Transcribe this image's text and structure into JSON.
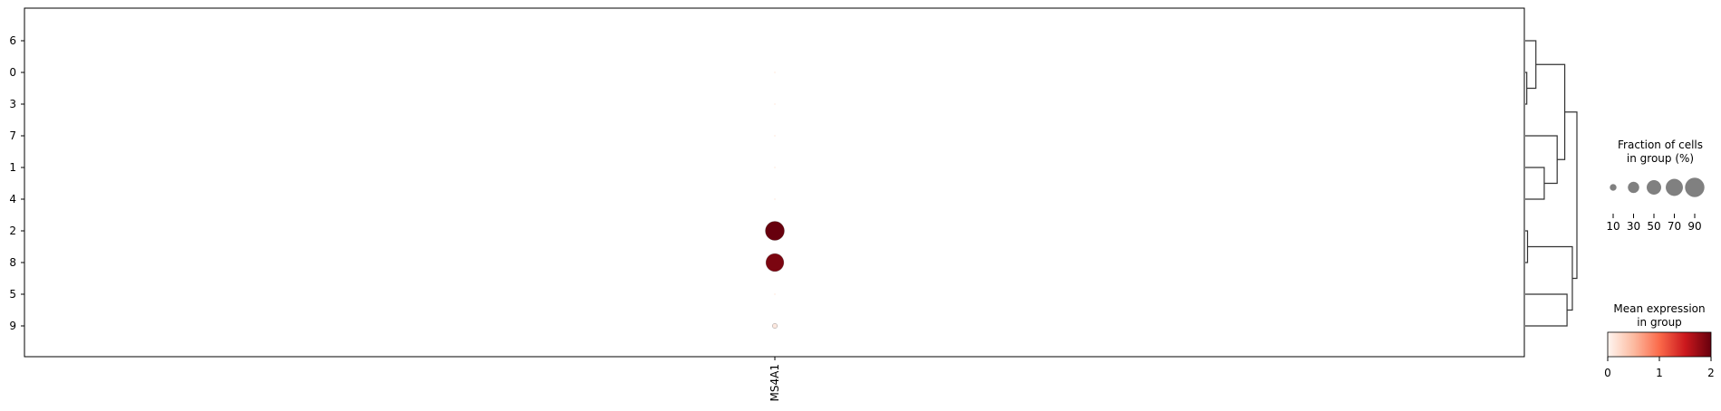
{
  "chart_data": {
    "type": "dotplot",
    "genes": [
      "MS4A1"
    ],
    "groups": [
      "6",
      "0",
      "3",
      "7",
      "1",
      "4",
      "2",
      "8",
      "5",
      "9"
    ],
    "points": [
      {
        "group": "6",
        "gene": "MS4A1",
        "fraction": 0,
        "mean_expression": 0
      },
      {
        "group": "0",
        "gene": "MS4A1",
        "fraction": 1,
        "mean_expression": 0.02
      },
      {
        "group": "3",
        "gene": "MS4A1",
        "fraction": 1,
        "mean_expression": 0.02
      },
      {
        "group": "7",
        "gene": "MS4A1",
        "fraction": 1,
        "mean_expression": 0.02
      },
      {
        "group": "1",
        "gene": "MS4A1",
        "fraction": 1,
        "mean_expression": 0.02
      },
      {
        "group": "4",
        "gene": "MS4A1",
        "fraction": 1,
        "mean_expression": 0.02
      },
      {
        "group": "2",
        "gene": "MS4A1",
        "fraction": 90,
        "mean_expression": 2.0
      },
      {
        "group": "8",
        "gene": "MS4A1",
        "fraction": 80,
        "mean_expression": 1.9
      },
      {
        "group": "5",
        "gene": "MS4A1",
        "fraction": 1,
        "mean_expression": 0.02
      },
      {
        "group": "9",
        "gene": "MS4A1",
        "fraction": 6,
        "mean_expression": 0.1
      }
    ],
    "dendrogram": {
      "leaf_order": [
        "6",
        "0",
        "3",
        "7",
        "1",
        "4",
        "2",
        "8",
        "5",
        "9"
      ],
      "links": [
        {
          "id": "a",
          "children": [
            "0",
            "3"
          ],
          "height": 0.02
        },
        {
          "id": "b",
          "children": [
            "6",
            "a"
          ],
          "height": 0.14
        },
        {
          "id": "c",
          "children": [
            "1",
            "4"
          ],
          "height": 0.25
        },
        {
          "id": "d",
          "children": [
            "7",
            "c"
          ],
          "height": 0.42
        },
        {
          "id": "e",
          "children": [
            "b",
            "d"
          ],
          "height": 0.52
        },
        {
          "id": "f",
          "children": [
            "2",
            "8"
          ],
          "height": 0.03
        },
        {
          "id": "g",
          "children": [
            "5",
            "9"
          ],
          "height": 0.55
        },
        {
          "id": "h",
          "children": [
            "f",
            "g"
          ],
          "height": 0.62
        },
        {
          "id": "root",
          "children": [
            "e",
            "h"
          ],
          "height": 0.68
        }
      ]
    },
    "size_legend": {
      "title_line1": "Fraction of cells",
      "title_line2": "in group (%)",
      "values": [
        10,
        30,
        50,
        70,
        90
      ],
      "labels": [
        "10",
        "30",
        "50",
        "70",
        "90"
      ],
      "color": "#808080"
    },
    "color_legend": {
      "title_line1": "Mean expression",
      "title_line2": "in group",
      "range": [
        0,
        2
      ],
      "tick_labels": [
        "0",
        "1",
        "2"
      ],
      "colormap": "Reds",
      "stops": [
        "#fff5f0",
        "#fcbba1",
        "#fb6a4a",
        "#cb181d",
        "#67000d"
      ]
    },
    "grid": false
  }
}
